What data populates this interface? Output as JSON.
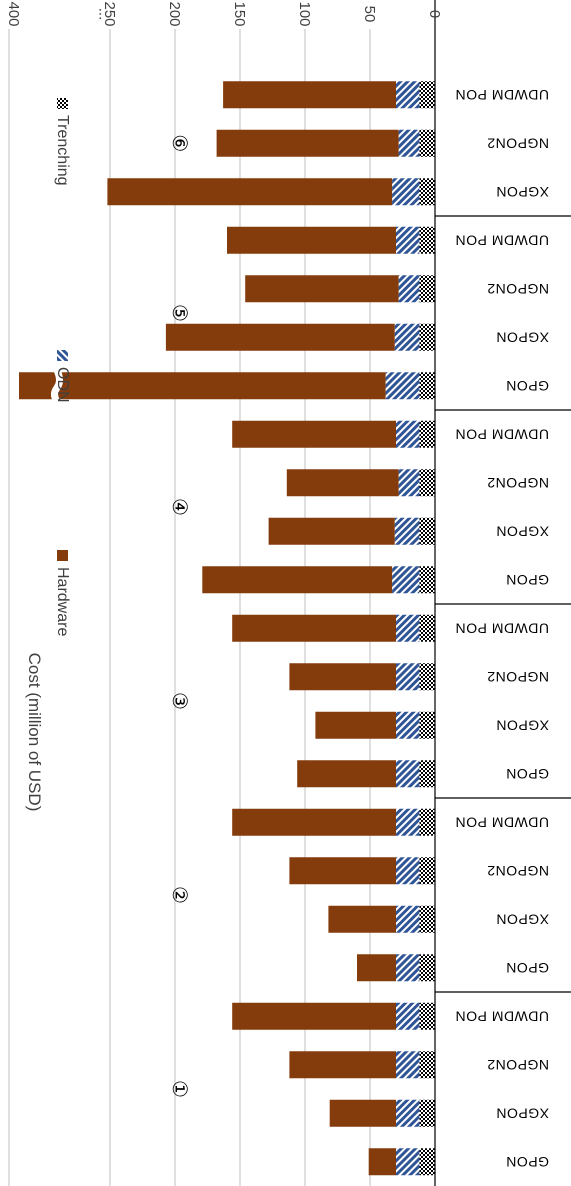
{
  "chart_data": {
    "type": "bar",
    "orientation": "horizontal-stacked",
    "rotation": 180,
    "ylabel": "Cost (million of USD)",
    "xlim": [
      0,
      260
    ],
    "axis_ticks": [
      {
        "value": 0,
        "label": "0"
      },
      {
        "value": 50,
        "label": "50"
      },
      {
        "value": 100,
        "label": "100"
      },
      {
        "value": 150,
        "label": "150"
      },
      {
        "value": 200,
        "label": "200"
      },
      {
        "value": 250,
        "label": "250"
      }
    ],
    "break_label": "...",
    "top_tick_label": "400",
    "grid": true,
    "legend_position": "top",
    "series": [
      {
        "name": "Trenching",
        "color": "#000000",
        "pattern": "checker"
      },
      {
        "name": "ODN",
        "color": "#2f5597",
        "pattern": "diagonal"
      },
      {
        "name": "Hardware",
        "color": "#843c0c",
        "pattern": "solid"
      }
    ],
    "groups": [
      {
        "label": "①",
        "categories": [
          "GPON",
          "XGPON",
          "NGPON2",
          "UDWDM PON"
        ],
        "trenching": [
          12,
          12,
          12,
          12
        ],
        "odn": [
          18,
          18,
          18,
          18
        ],
        "hardware": [
          21,
          51,
          82,
          126
        ]
      },
      {
        "label": "②",
        "categories": [
          "GPON",
          "XGPON",
          "NGPON2",
          "UDWDM PON"
        ],
        "trenching": [
          12,
          12,
          12,
          12
        ],
        "odn": [
          18,
          18,
          18,
          18
        ],
        "hardware": [
          30,
          52,
          82,
          126
        ]
      },
      {
        "label": "③",
        "categories": [
          "GPON",
          "XGPON",
          "NGPON2",
          "UDWDM PON"
        ],
        "trenching": [
          12,
          12,
          12,
          12
        ],
        "odn": [
          18,
          18,
          18,
          18
        ],
        "hardware": [
          76,
          62,
          82,
          126
        ]
      },
      {
        "label": "④",
        "categories": [
          "GPON",
          "XGPON",
          "NGPON2",
          "UDWDM PON"
        ],
        "trenching": [
          12,
          12,
          12,
          12
        ],
        "odn": [
          21,
          19,
          16,
          18
        ],
        "hardware": [
          146,
          97,
          86,
          126
        ]
      },
      {
        "label": "⑤",
        "categories": [
          "GPON",
          "XGPON",
          "NGPON2",
          "UDWDM PON"
        ],
        "trenching": [
          12,
          12,
          12,
          12
        ],
        "odn": [
          26,
          19,
          16,
          18
        ],
        "hardware": [
          400,
          176,
          118,
          130
        ],
        "broken": [
          true,
          false,
          false,
          false
        ]
      },
      {
        "label": "⑥",
        "categories": [
          "XGPON",
          "NGPON2",
          "UDWDM PON"
        ],
        "trenching": [
          12,
          12,
          12
        ],
        "odn": [
          21,
          16,
          18
        ],
        "hardware": [
          219,
          140,
          133
        ]
      }
    ]
  }
}
